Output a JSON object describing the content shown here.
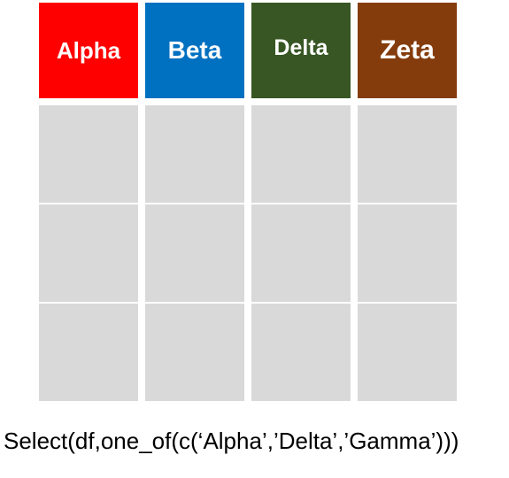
{
  "columns": [
    {
      "label": "Alpha",
      "color": "#ff0000"
    },
    {
      "label": "Beta",
      "color": "#0070c0"
    },
    {
      "label": "Delta",
      "color": "#375623"
    },
    {
      "label": "Zeta",
      "color": "#843c0c"
    }
  ],
  "caption": "Select(df,one_of(c(‘Alpha’,’Delta’,’Gamma’)))"
}
